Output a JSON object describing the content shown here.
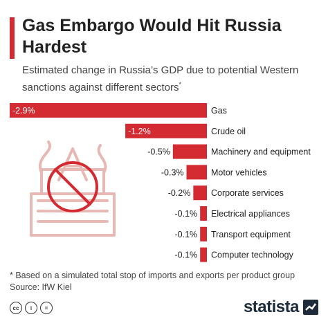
{
  "header": {
    "title": "Gas Embargo Would Hit Russia Hardest",
    "subtitle": "Estimated change in Russia’s GDP due to potential Western sanctions against different sectors",
    "subtitle_marker": "*"
  },
  "chart_data": {
    "type": "bar",
    "orientation": "horizontal",
    "categories": [
      "Gas",
      "Crude oil",
      "Machinery and equipment",
      "Motor vehicles",
      "Corporate services",
      "Electrical appliances",
      "Transport equipment",
      "Computer technology"
    ],
    "values": [
      -2.9,
      -1.2,
      -0.5,
      -0.3,
      -0.2,
      -0.1,
      -0.1,
      -0.1
    ],
    "value_labels": [
      "-2.9%",
      "-1.2%",
      "-0.5%",
      "-0.3%",
      "-0.2%",
      "-0.1%",
      "-0.1%",
      "-0.1%"
    ],
    "unit": "%",
    "bar_color": "#d42a31",
    "grid": false,
    "legend": "none"
  },
  "footer": {
    "footnote": "* Based on a simulated total stop of imports and exports per product group",
    "source": "Source: IfW Kiel",
    "logo": "statista",
    "license_icons": [
      "cc-icon",
      "by-icon",
      "nd-icon"
    ]
  },
  "colors": {
    "accent": "#d42a31",
    "text": "#222222",
    "illustration": "#e8b8b4"
  },
  "illustration": "crossed-out-gas-rig-icon"
}
